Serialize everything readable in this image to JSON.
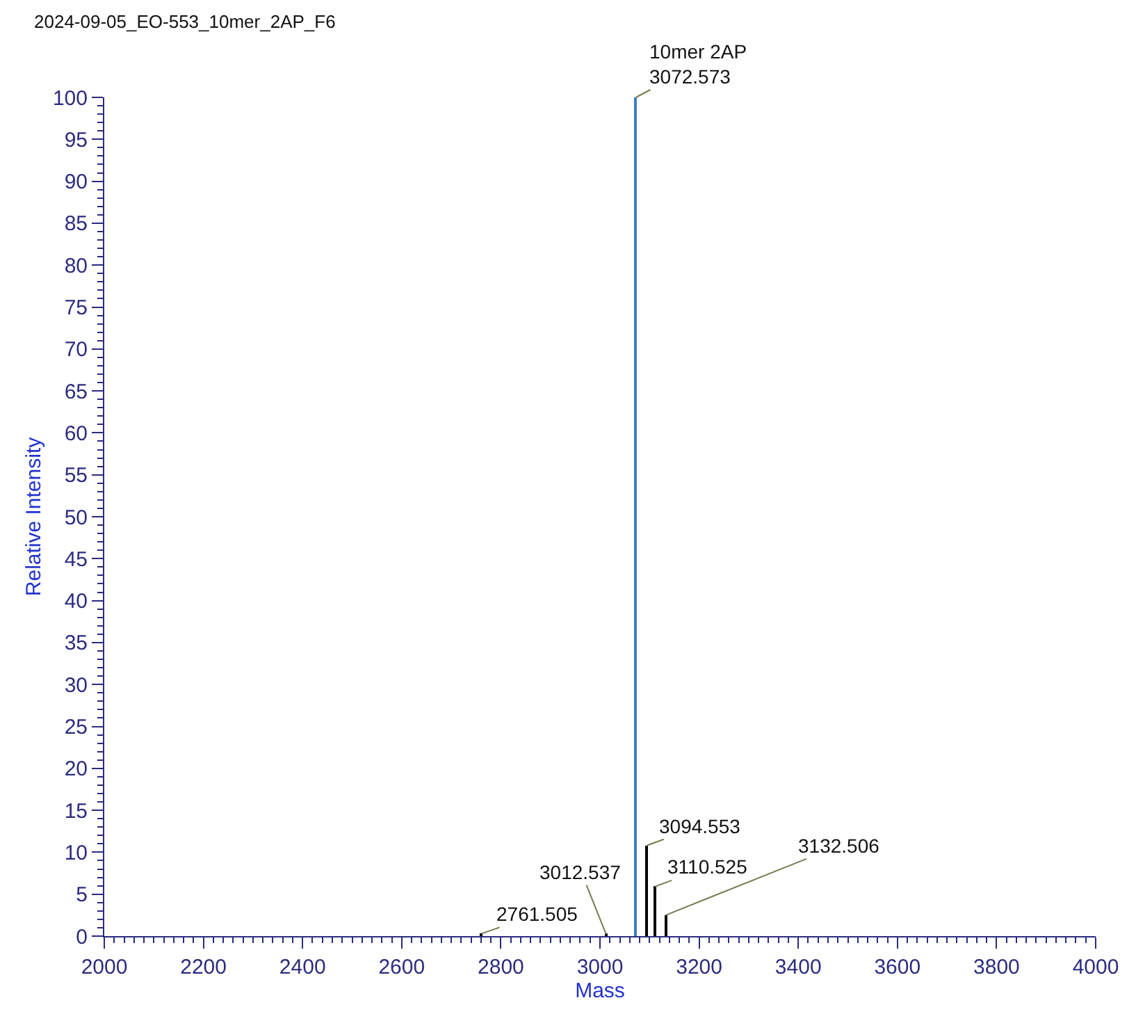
{
  "chart_data": {
    "type": "bar",
    "title": "2024-09-05_EO-553_10mer_2AP_F6",
    "xlabel": "Mass",
    "ylabel": "Relative Intensity",
    "x": [
      2761.505,
      3012.537,
      3072.573,
      3094.553,
      3110.525,
      3132.506
    ],
    "values": [
      0.3,
      0.2,
      100,
      10.8,
      5.9,
      2.5
    ],
    "colors": [
      "#000000",
      "#000000",
      "#3a7fc8",
      "#000000",
      "#000000",
      "#000000"
    ],
    "xlim": [
      2000,
      4000
    ],
    "xticks": [
      2000,
      2200,
      2400,
      2600,
      2800,
      3000,
      3200,
      3400,
      3600,
      3800,
      4000
    ],
    "ylim": [
      0,
      100
    ],
    "yticks": [
      0,
      5,
      10,
      15,
      20,
      25,
      30,
      35,
      40,
      45,
      50,
      55,
      60,
      65,
      70,
      75,
      80,
      85,
      90,
      95,
      100
    ],
    "annotations": [
      {
        "text": "2761.505",
        "x": 2761.505,
        "y": 0.3
      },
      {
        "text": "3012.537",
        "x": 3012.537,
        "y": 0.2
      },
      {
        "text": "10mer 2AP\n3072.573",
        "x": 3072.573,
        "y": 100
      },
      {
        "text": "3094.553",
        "x": 3094.553,
        "y": 10.8
      },
      {
        "text": "3110.525",
        "x": 3110.525,
        "y": 5.9
      },
      {
        "text": "3132.506",
        "x": 3132.506,
        "y": 2.5
      }
    ]
  }
}
